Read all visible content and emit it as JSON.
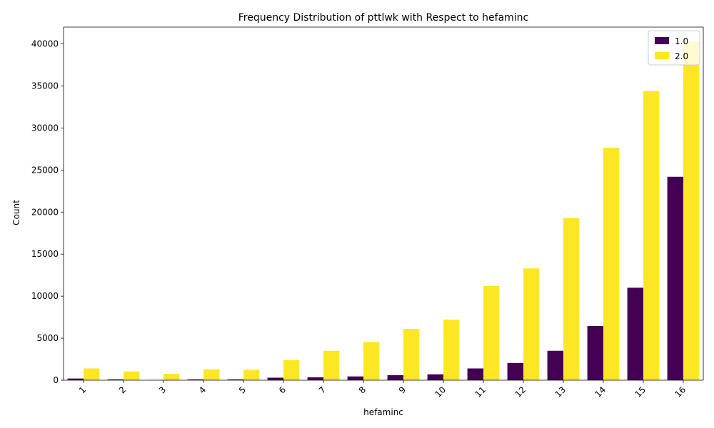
{
  "chart_data": {
    "type": "bar",
    "title": "Frequency Distribution of pttlwk with Respect to hefaminc",
    "xlabel": "hefaminc",
    "ylabel": "Count",
    "categories": [
      "1",
      "2",
      "3",
      "4",
      "5",
      "6",
      "7",
      "8",
      "9",
      "10",
      "11",
      "12",
      "13",
      "14",
      "15",
      "16"
    ],
    "series": [
      {
        "name": "1.0",
        "color": "#440154",
        "values": [
          200,
          100,
          30,
          100,
          100,
          300,
          350,
          450,
          600,
          700,
          1400,
          2050,
          3500,
          6450,
          11000,
          24200
        ]
      },
      {
        "name": "2.0",
        "color": "#fde725",
        "values": [
          1400,
          1050,
          750,
          1300,
          1250,
          2400,
          3500,
          4550,
          6100,
          7200,
          11200,
          13300,
          19300,
          27650,
          34400,
          40300
        ]
      }
    ],
    "yticks": [
      0,
      5000,
      10000,
      15000,
      20000,
      25000,
      30000,
      35000,
      40000
    ],
    "ylim": [
      0,
      42000
    ],
    "grid": false,
    "legend_position": "top-right"
  }
}
